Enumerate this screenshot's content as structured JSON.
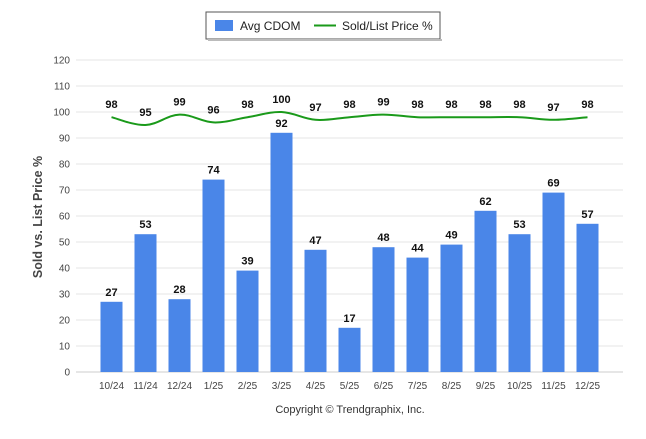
{
  "chart_data": {
    "type": "bar",
    "title": "",
    "xlabel": "",
    "ylabel": "Sold vs. List Price %",
    "ylim": [
      0,
      120
    ],
    "yticks": [
      0,
      10,
      20,
      30,
      40,
      50,
      60,
      70,
      80,
      90,
      100,
      110,
      120
    ],
    "categories": [
      "10/24",
      "11/24",
      "12/24",
      "1/25",
      "2/25",
      "3/25",
      "4/25",
      "5/25",
      "6/25",
      "7/25",
      "8/25",
      "9/25",
      "10/25",
      "11/25",
      "12/25"
    ],
    "series": [
      {
        "name": "Avg CDOM",
        "kind": "bar",
        "color": "#4a86e8",
        "values": [
          27,
          53,
          28,
          74,
          39,
          92,
          47,
          17,
          48,
          44,
          49,
          62,
          53,
          69,
          57
        ]
      },
      {
        "name": "Sold/List Price %",
        "kind": "line",
        "color": "#1a9a1a",
        "values": [
          98,
          95,
          99,
          96,
          98,
          100,
          97,
          98,
          99,
          98,
          98,
          98,
          98,
          97,
          98
        ]
      }
    ],
    "legend_position": "top-center",
    "grid": true
  },
  "footer": {
    "copyright": "Copyright © Trendgraphix, Inc."
  },
  "colors": {
    "bar": "#4a86e8",
    "line": "#1a9a1a",
    "grid": "#e6e6e6",
    "axis_text": "#444444",
    "label_text": "#111111"
  }
}
